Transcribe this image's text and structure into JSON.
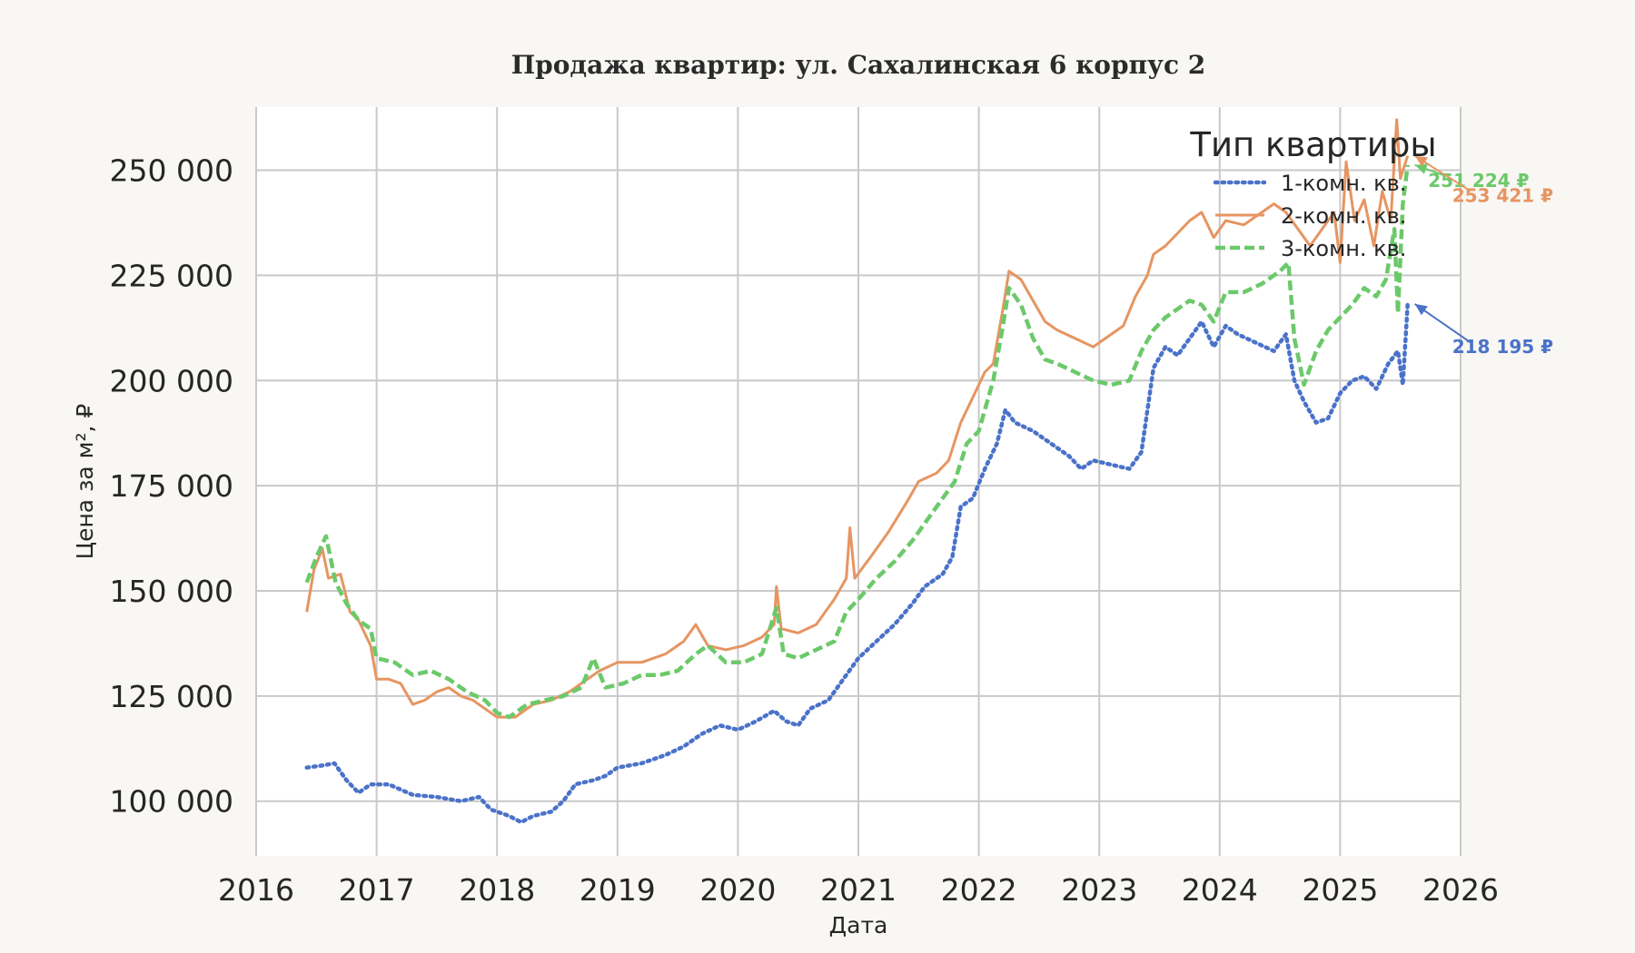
{
  "chart_data": {
    "type": "line",
    "title": "Продажа квартир: ул. Сахалинская 6 корпус 2",
    "xlabel": "Дата",
    "ylabel": "Цена за м², ₽",
    "xlim": [
      2016.0,
      2026.0
    ],
    "ylim": [
      87000,
      265000
    ],
    "x_ticks": [
      "2016",
      "2017",
      "2018",
      "2019",
      "2020",
      "2021",
      "2022",
      "2023",
      "2024",
      "2025",
      "2026"
    ],
    "y_ticks": [
      {
        "value": 100000,
        "label": "100 000"
      },
      {
        "value": 125000,
        "label": "125 000"
      },
      {
        "value": 150000,
        "label": "150 000"
      },
      {
        "value": 175000,
        "label": "175 000"
      },
      {
        "value": 200000,
        "label": "200 000"
      },
      {
        "value": 225000,
        "label": "225 000"
      },
      {
        "value": 250000,
        "label": "250 000"
      }
    ],
    "grid": true,
    "legend": {
      "title": "Тип квартиры",
      "position": "top-right"
    },
    "series": [
      {
        "name": "1-комн. кв.",
        "color": "#4a72c9",
        "style": "dotted",
        "points": [
          [
            2016.42,
            108000
          ],
          [
            2016.55,
            108500
          ],
          [
            2016.65,
            109000
          ],
          [
            2016.75,
            105000
          ],
          [
            2016.85,
            102000
          ],
          [
            2016.95,
            104000
          ],
          [
            2017.1,
            104000
          ],
          [
            2017.3,
            101500
          ],
          [
            2017.5,
            101000
          ],
          [
            2017.7,
            100000
          ],
          [
            2017.85,
            101000
          ],
          [
            2017.95,
            98000
          ],
          [
            2018.1,
            96500
          ],
          [
            2018.2,
            95000
          ],
          [
            2018.3,
            96500
          ],
          [
            2018.45,
            97500
          ],
          [
            2018.55,
            100000
          ],
          [
            2018.65,
            104000
          ],
          [
            2018.8,
            105000
          ],
          [
            2018.9,
            106000
          ],
          [
            2019.0,
            108000
          ],
          [
            2019.2,
            109000
          ],
          [
            2019.4,
            111000
          ],
          [
            2019.55,
            113000
          ],
          [
            2019.7,
            116000
          ],
          [
            2019.85,
            118000
          ],
          [
            2020.0,
            117000
          ],
          [
            2020.15,
            119000
          ],
          [
            2020.3,
            121500
          ],
          [
            2020.4,
            119000
          ],
          [
            2020.5,
            118000
          ],
          [
            2020.6,
            122000
          ],
          [
            2020.75,
            124000
          ],
          [
            2020.9,
            130000
          ],
          [
            2021.0,
            134000
          ],
          [
            2021.15,
            138000
          ],
          [
            2021.3,
            142000
          ],
          [
            2021.45,
            147000
          ],
          [
            2021.55,
            151000
          ],
          [
            2021.7,
            154000
          ],
          [
            2021.78,
            158000
          ],
          [
            2021.85,
            170000
          ],
          [
            2021.95,
            172000
          ],
          [
            2022.05,
            179000
          ],
          [
            2022.15,
            185000
          ],
          [
            2022.22,
            193000
          ],
          [
            2022.3,
            190000
          ],
          [
            2022.45,
            188000
          ],
          [
            2022.6,
            185000
          ],
          [
            2022.75,
            182000
          ],
          [
            2022.85,
            179000
          ],
          [
            2022.95,
            181000
          ],
          [
            2023.1,
            180000
          ],
          [
            2023.25,
            179000
          ],
          [
            2023.35,
            183000
          ],
          [
            2023.45,
            203000
          ],
          [
            2023.55,
            208000
          ],
          [
            2023.65,
            206000
          ],
          [
            2023.75,
            210000
          ],
          [
            2023.85,
            214000
          ],
          [
            2023.95,
            208000
          ],
          [
            2024.05,
            213000
          ],
          [
            2024.15,
            211000
          ],
          [
            2024.3,
            209000
          ],
          [
            2024.45,
            207000
          ],
          [
            2024.55,
            211000
          ],
          [
            2024.62,
            200000
          ],
          [
            2024.7,
            195000
          ],
          [
            2024.8,
            190000
          ],
          [
            2024.9,
            191000
          ],
          [
            2025.0,
            197000
          ],
          [
            2025.1,
            200000
          ],
          [
            2025.2,
            201000
          ],
          [
            2025.3,
            198000
          ],
          [
            2025.4,
            204000
          ],
          [
            2025.48,
            207000
          ],
          [
            2025.52,
            199000
          ],
          [
            2025.56,
            218195
          ]
        ]
      },
      {
        "name": "2-комн. кв.",
        "color": "#e69562",
        "style": "solid",
        "points": [
          [
            2016.42,
            145000
          ],
          [
            2016.48,
            155000
          ],
          [
            2016.55,
            160000
          ],
          [
            2016.6,
            153000
          ],
          [
            2016.7,
            154000
          ],
          [
            2016.78,
            145000
          ],
          [
            2016.85,
            143000
          ],
          [
            2016.95,
            137000
          ],
          [
            2017.0,
            129000
          ],
          [
            2017.1,
            129000
          ],
          [
            2017.2,
            128000
          ],
          [
            2017.3,
            123000
          ],
          [
            2017.4,
            124000
          ],
          [
            2017.5,
            126000
          ],
          [
            2017.6,
            127000
          ],
          [
            2017.7,
            125000
          ],
          [
            2017.8,
            124000
          ],
          [
            2017.9,
            122000
          ],
          [
            2018.0,
            120000
          ],
          [
            2018.15,
            120000
          ],
          [
            2018.3,
            123000
          ],
          [
            2018.45,
            124000
          ],
          [
            2018.6,
            126000
          ],
          [
            2018.75,
            129000
          ],
          [
            2018.85,
            131000
          ],
          [
            2019.0,
            133000
          ],
          [
            2019.2,
            133000
          ],
          [
            2019.4,
            135000
          ],
          [
            2019.55,
            138000
          ],
          [
            2019.65,
            142000
          ],
          [
            2019.75,
            137000
          ],
          [
            2019.9,
            136000
          ],
          [
            2020.05,
            137000
          ],
          [
            2020.2,
            139000
          ],
          [
            2020.3,
            142000
          ],
          [
            2020.32,
            151000
          ],
          [
            2020.36,
            141000
          ],
          [
            2020.5,
            140000
          ],
          [
            2020.65,
            142000
          ],
          [
            2020.8,
            148000
          ],
          [
            2020.9,
            153000
          ],
          [
            2020.93,
            165000
          ],
          [
            2020.97,
            153000
          ],
          [
            2021.1,
            158000
          ],
          [
            2021.25,
            164000
          ],
          [
            2021.4,
            171000
          ],
          [
            2021.5,
            176000
          ],
          [
            2021.65,
            178000
          ],
          [
            2021.75,
            181000
          ],
          [
            2021.85,
            190000
          ],
          [
            2021.95,
            196000
          ],
          [
            2022.05,
            202000
          ],
          [
            2022.12,
            204000
          ],
          [
            2022.2,
            217000
          ],
          [
            2022.25,
            226000
          ],
          [
            2022.35,
            224000
          ],
          [
            2022.45,
            219000
          ],
          [
            2022.55,
            214000
          ],
          [
            2022.65,
            212000
          ],
          [
            2022.8,
            210000
          ],
          [
            2022.95,
            208000
          ],
          [
            2023.05,
            210000
          ],
          [
            2023.2,
            213000
          ],
          [
            2023.3,
            220000
          ],
          [
            2023.4,
            225000
          ],
          [
            2023.45,
            230000
          ],
          [
            2023.55,
            232000
          ],
          [
            2023.65,
            235000
          ],
          [
            2023.75,
            238000
          ],
          [
            2023.85,
            240000
          ],
          [
            2023.95,
            234000
          ],
          [
            2024.05,
            238000
          ],
          [
            2024.2,
            237000
          ],
          [
            2024.3,
            239000
          ],
          [
            2024.45,
            242000
          ],
          [
            2024.55,
            240000
          ],
          [
            2024.65,
            236000
          ],
          [
            2024.75,
            232000
          ],
          [
            2024.85,
            236000
          ],
          [
            2024.95,
            240000
          ],
          [
            2025.0,
            228000
          ],
          [
            2025.05,
            252000
          ],
          [
            2025.12,
            238000
          ],
          [
            2025.2,
            243000
          ],
          [
            2025.28,
            232000
          ],
          [
            2025.35,
            245000
          ],
          [
            2025.42,
            238000
          ],
          [
            2025.47,
            262000
          ],
          [
            2025.5,
            248000
          ],
          [
            2025.56,
            253421
          ]
        ]
      },
      {
        "name": "3-комн. кв.",
        "color": "#6cc96a",
        "style": "dashed",
        "points": [
          [
            2016.42,
            152000
          ],
          [
            2016.5,
            158000
          ],
          [
            2016.58,
            163000
          ],
          [
            2016.66,
            152000
          ],
          [
            2016.75,
            147000
          ],
          [
            2016.85,
            143000
          ],
          [
            2016.95,
            141000
          ],
          [
            2017.0,
            134000
          ],
          [
            2017.15,
            133000
          ],
          [
            2017.3,
            130000
          ],
          [
            2017.45,
            131000
          ],
          [
            2017.6,
            129000
          ],
          [
            2017.75,
            126000
          ],
          [
            2017.9,
            124000
          ],
          [
            2018.0,
            121000
          ],
          [
            2018.1,
            120000
          ],
          [
            2018.25,
            123000
          ],
          [
            2018.4,
            124000
          ],
          [
            2018.55,
            125000
          ],
          [
            2018.7,
            127000
          ],
          [
            2018.8,
            134000
          ],
          [
            2018.9,
            127000
          ],
          [
            2019.05,
            128000
          ],
          [
            2019.2,
            130000
          ],
          [
            2019.35,
            130000
          ],
          [
            2019.5,
            131000
          ],
          [
            2019.65,
            135000
          ],
          [
            2019.75,
            137000
          ],
          [
            2019.9,
            133000
          ],
          [
            2020.05,
            133000
          ],
          [
            2020.2,
            135000
          ],
          [
            2020.32,
            146000
          ],
          [
            2020.38,
            135000
          ],
          [
            2020.5,
            134000
          ],
          [
            2020.65,
            136000
          ],
          [
            2020.8,
            138000
          ],
          [
            2020.9,
            145000
          ],
          [
            2021.0,
            148000
          ],
          [
            2021.15,
            153000
          ],
          [
            2021.3,
            157000
          ],
          [
            2021.45,
            162000
          ],
          [
            2021.55,
            166000
          ],
          [
            2021.7,
            172000
          ],
          [
            2021.8,
            176000
          ],
          [
            2021.9,
            185000
          ],
          [
            2022.0,
            188000
          ],
          [
            2022.05,
            193000
          ],
          [
            2022.12,
            200000
          ],
          [
            2022.2,
            213000
          ],
          [
            2022.25,
            222000
          ],
          [
            2022.35,
            218000
          ],
          [
            2022.45,
            210000
          ],
          [
            2022.55,
            205000
          ],
          [
            2022.65,
            204000
          ],
          [
            2022.8,
            202000
          ],
          [
            2022.95,
            200000
          ],
          [
            2023.1,
            199000
          ],
          [
            2023.25,
            200000
          ],
          [
            2023.35,
            207000
          ],
          [
            2023.45,
            212000
          ],
          [
            2023.55,
            215000
          ],
          [
            2023.65,
            217000
          ],
          [
            2023.75,
            219000
          ],
          [
            2023.85,
            218000
          ],
          [
            2023.95,
            214000
          ],
          [
            2024.05,
            221000
          ],
          [
            2024.2,
            221000
          ],
          [
            2024.35,
            223000
          ],
          [
            2024.5,
            226000
          ],
          [
            2024.57,
            228000
          ],
          [
            2024.62,
            210000
          ],
          [
            2024.7,
            199000
          ],
          [
            2024.8,
            207000
          ],
          [
            2024.9,
            212000
          ],
          [
            2025.0,
            215000
          ],
          [
            2025.1,
            218000
          ],
          [
            2025.2,
            222000
          ],
          [
            2025.3,
            220000
          ],
          [
            2025.38,
            224000
          ],
          [
            2025.45,
            236000
          ],
          [
            2025.48,
            216000
          ],
          [
            2025.52,
            242000
          ],
          [
            2025.56,
            251224
          ]
        ]
      }
    ],
    "annotations": [
      {
        "label": "251 224 ₽",
        "series": "3-комн. кв.",
        "x": 2025.56,
        "y": 251224,
        "text_x": 2025.73,
        "text_y": 246000
      },
      {
        "label": "253 421 ₽",
        "series": "2-комн. кв.",
        "x": 2025.56,
        "y": 253421,
        "text_x": 2025.93,
        "text_y": 242500
      },
      {
        "label": "218 195 ₽",
        "series": "1-комн. кв.",
        "x": 2025.56,
        "y": 218195,
        "text_x": 2025.93,
        "text_y": 206500
      }
    ]
  }
}
